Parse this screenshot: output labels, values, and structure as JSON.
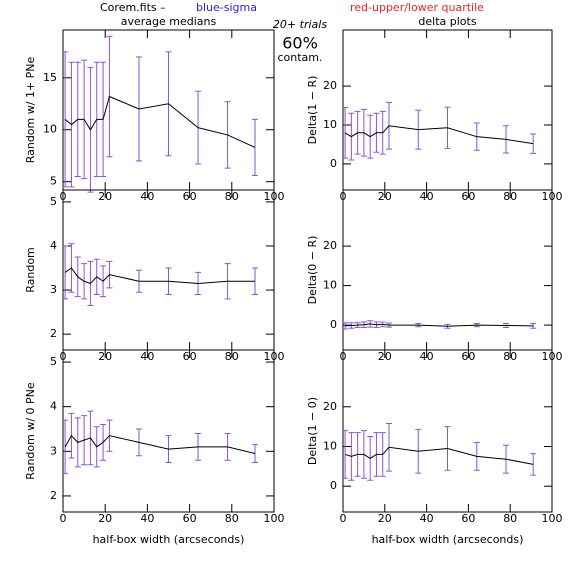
{
  "header": {
    "file": "Corem.fits –",
    "sigma": "blue-sigma",
    "quartile": "red-upper/lower quartile",
    "trials": "20+ trials",
    "contam": "60%",
    "contam_label": "contam."
  },
  "chart_data": [
    {
      "type": "line",
      "title": "average medians",
      "ylabel": "Random w/ 1+ PNe",
      "x": [
        1,
        4,
        7,
        10,
        13,
        16,
        19,
        22,
        36,
        50,
        64,
        78,
        91
      ],
      "values": [
        11,
        10.5,
        11,
        11,
        10,
        11,
        11,
        13.2,
        12,
        12.5,
        10.2,
        9.5,
        8.3
      ],
      "errors": [
        6.5,
        6,
        5.5,
        5.7,
        6,
        5.5,
        5.5,
        5.8,
        5,
        5,
        3.5,
        3.2,
        2.7
      ],
      "color": "#000000",
      "error_color": "#8a55dd",
      "xlim": [
        0,
        100
      ],
      "xticks": [
        0,
        20,
        40,
        60,
        80,
        100
      ],
      "ylim": [
        4.2,
        19.6
      ],
      "yticks": [
        5,
        10,
        15
      ]
    },
    {
      "type": "line",
      "title": "delta plots",
      "ylabel": "Delta(1 − R)",
      "x": [
        1,
        4,
        7,
        10,
        13,
        16,
        19,
        22,
        36,
        50,
        64,
        78,
        91
      ],
      "values": [
        8,
        7,
        8,
        8,
        7,
        8,
        8,
        9.8,
        8.8,
        9.3,
        7,
        6.3,
        5.2
      ],
      "errors": [
        6.5,
        6,
        5.5,
        6,
        5.5,
        5,
        5.5,
        6,
        5,
        5.3,
        3.5,
        3.5,
        2.5
      ],
      "color": "#000000",
      "error_color": "#8a55dd",
      "xlim": [
        0,
        100
      ],
      "xticks": [
        0,
        20,
        40,
        60,
        80,
        100
      ],
      "ylim": [
        -6.7,
        34.4
      ],
      "yticks": [
        0,
        10,
        20
      ]
    },
    {
      "type": "line",
      "ylabel": "Random",
      "x": [
        1,
        4,
        7,
        10,
        13,
        16,
        19,
        22,
        36,
        50,
        64,
        78,
        91
      ],
      "values": [
        3.4,
        3.5,
        3.3,
        3.2,
        3.15,
        3.3,
        3.2,
        3.35,
        3.2,
        3.2,
        3.15,
        3.2,
        3.2
      ],
      "errors": [
        0.6,
        0.55,
        0.45,
        0.4,
        0.5,
        0.4,
        0.35,
        0.3,
        0.25,
        0.3,
        0.25,
        0.4,
        0.3
      ],
      "color": "#000000",
      "error_color": "#8a55dd",
      "xlim": [
        0,
        100
      ],
      "xticks": [
        0,
        20,
        40,
        60,
        80,
        100
      ],
      "ylim": [
        1.64,
        5.27
      ],
      "yticks": [
        2,
        3,
        4,
        5
      ]
    },
    {
      "type": "line",
      "ylabel": "Delta(0 − R)",
      "x": [
        1,
        4,
        7,
        10,
        13,
        16,
        19,
        22,
        36,
        50,
        64,
        78,
        91
      ],
      "values": [
        -0.2,
        -0.1,
        0,
        0.1,
        0.3,
        0.1,
        0.2,
        0,
        0,
        -0.3,
        0,
        -0.1,
        -0.2
      ],
      "errors": [
        0.8,
        0.7,
        0.6,
        0.7,
        0.8,
        0.7,
        0.6,
        0.5,
        0.4,
        0.5,
        0.4,
        0.5,
        0.6
      ],
      "color": "#000000",
      "error_color": "#8a55dd",
      "xlim": [
        0,
        100
      ],
      "xticks": [
        0,
        20,
        40,
        60,
        80,
        100
      ],
      "ylim": [
        -6.3,
        34.2
      ],
      "yticks": [
        0,
        10,
        20
      ]
    },
    {
      "type": "line",
      "ylabel": "Random w/ 0 PNe",
      "xlabel": "half-box width (arcseconds)",
      "x": [
        1,
        4,
        7,
        10,
        13,
        16,
        19,
        22,
        36,
        50,
        64,
        78,
        91
      ],
      "values": [
        3.1,
        3.35,
        3.2,
        3.25,
        3.3,
        3.1,
        3.2,
        3.35,
        3.2,
        3.05,
        3.1,
        3.1,
        2.95
      ],
      "errors": [
        0.6,
        0.5,
        0.55,
        0.55,
        0.6,
        0.45,
        0.4,
        0.35,
        0.3,
        0.3,
        0.3,
        0.3,
        0.2
      ],
      "color": "#000000",
      "error_color": "#8a55dd",
      "xlim": [
        0,
        100
      ],
      "xticks": [
        0,
        20,
        40,
        60,
        80,
        100
      ],
      "ylim": [
        1.64,
        5.27
      ],
      "yticks": [
        2,
        3,
        4,
        5
      ]
    },
    {
      "type": "line",
      "ylabel": "Delta(1 − 0)",
      "xlabel": "half-box width (arcseconds)",
      "x": [
        1,
        4,
        7,
        10,
        13,
        16,
        19,
        22,
        36,
        50,
        64,
        78,
        91
      ],
      "values": [
        8,
        7.5,
        8,
        8,
        7,
        8,
        8,
        9.8,
        8.8,
        9.5,
        7.5,
        6.8,
        5.5
      ],
      "errors": [
        6,
        6,
        5.5,
        6,
        5.5,
        5.5,
        5.5,
        6,
        5.5,
        5.5,
        3.5,
        3.5,
        2.7
      ],
      "color": "#000000",
      "error_color": "#8a55dd",
      "xlim": [
        0,
        100
      ],
      "xticks": [
        0,
        20,
        40,
        60,
        80,
        100
      ],
      "ylim": [
        -6.5,
        34.3
      ],
      "yticks": [
        0,
        10,
        20
      ]
    }
  ]
}
